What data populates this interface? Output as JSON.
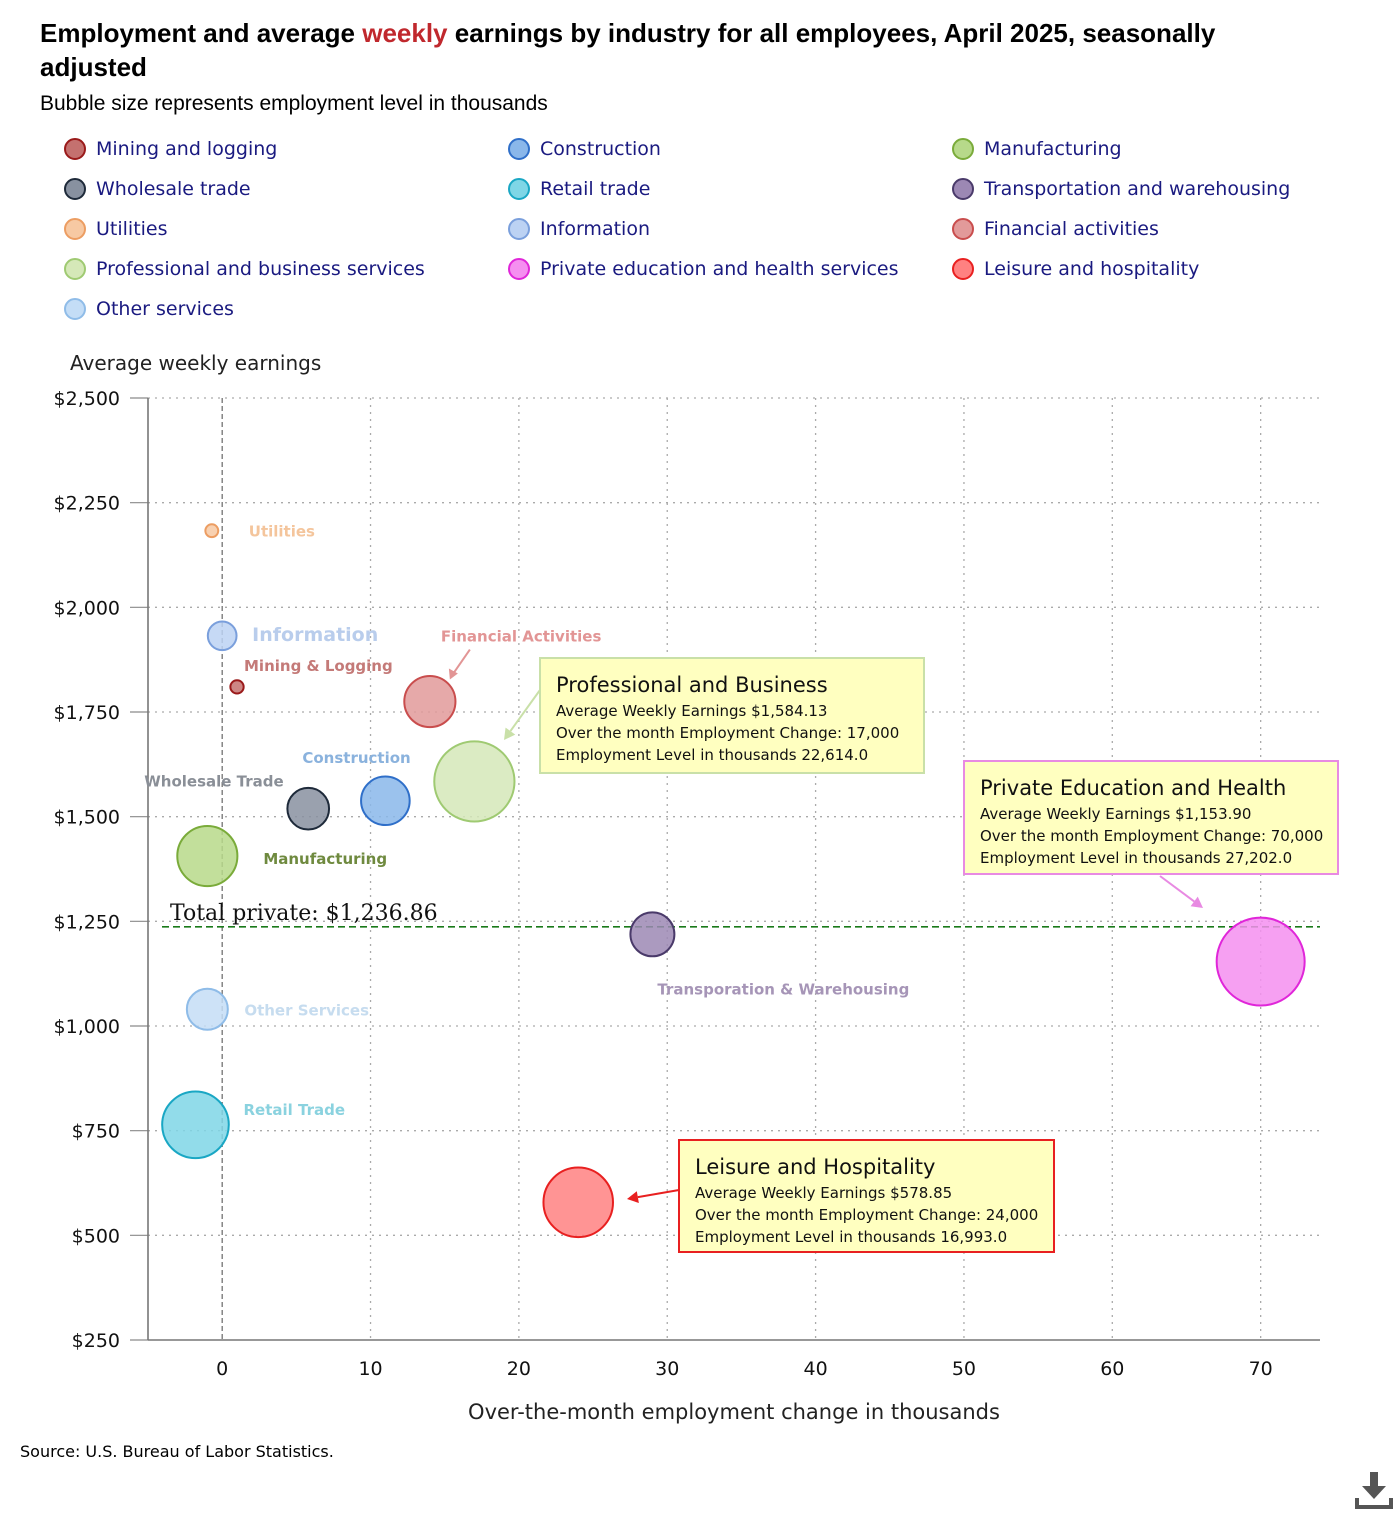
{
  "title": {
    "before": "Employment and average ",
    "highlight": "weekly",
    "after": " earnings by industry for all employees, April 2025, seasonally adjusted",
    "highlight_color": "#c0282d"
  },
  "subtitle": "Bubble size represents employment level in thousands",
  "legend": [
    {
      "label": "Mining and logging",
      "color": "#c4716f",
      "stroke": "#9a1a1a"
    },
    {
      "label": "Construction",
      "color": "#8ab7ea",
      "stroke": "#2f6fc9"
    },
    {
      "label": "Manufacturing",
      "color": "#b7d98a",
      "stroke": "#7aab3a"
    },
    {
      "label": "Wholesale trade",
      "color": "#8891a0",
      "stroke": "#1e2a3a"
    },
    {
      "label": "Retail trade",
      "color": "#7fd6e6",
      "stroke": "#1aa7c4"
    },
    {
      "label": "Transportation and warehousing",
      "color": "#9c88b4",
      "stroke": "#4a3a6a"
    },
    {
      "label": "Utilities",
      "color": "#f7c9a3",
      "stroke": "#ec9d62"
    },
    {
      "label": "Information",
      "color": "#bcd2f3",
      "stroke": "#7a9fdc"
    },
    {
      "label": "Financial activities",
      "color": "#e29a9a",
      "stroke": "#c94d4d"
    },
    {
      "label": "Professional and business services",
      "color": "#d5e8b8",
      "stroke": "#9fca72"
    },
    {
      "label": "Private education and health services",
      "color": "#f58ff0",
      "stroke": "#e026d9"
    },
    {
      "label": "Leisure and hospitality",
      "color": "#ff8181",
      "stroke": "#e82020"
    },
    {
      "label": "Other services",
      "color": "#c4ddf6",
      "stroke": "#8fbce8"
    }
  ],
  "chart_data": {
    "type": "scatter",
    "subtype": "bubble",
    "ylabel": "Average weekly earnings",
    "xlabel": "Over-the-month employment change in thousands",
    "xlim": [
      -5,
      74
    ],
    "ylim": [
      250,
      2500
    ],
    "xticks": [
      0,
      10,
      20,
      30,
      40,
      50,
      60,
      70
    ],
    "xtick_labels": [
      "0",
      "10",
      "20",
      "30",
      "40",
      "50",
      "60",
      "70"
    ],
    "yticks": [
      250,
      500,
      750,
      1000,
      1250,
      1500,
      1750,
      2000,
      2250,
      2500
    ],
    "ytick_labels": [
      "$250",
      "$500",
      "$750",
      "$1,000",
      "$1,250",
      "$1,500",
      "$1,750",
      "$2,000",
      "$2,250",
      "$2,500"
    ],
    "grid": "dotted",
    "reference_line": {
      "y": 1236.86,
      "label": "Total private: $1,236.86",
      "color": "#1a7a1a"
    },
    "series": [
      {
        "name": "Mining and logging",
        "label": "Mining & Logging",
        "x": 1,
        "y": 1810,
        "size": 620,
        "color": "#c4716f",
        "stroke": "#9a1a1a",
        "label_color": "#c47a78"
      },
      {
        "name": "Construction",
        "label": "Construction",
        "x": 11,
        "y": 1538,
        "size": 8300,
        "color": "#8ab7ea",
        "stroke": "#2f6fc9",
        "label_color": "#8ab2dd"
      },
      {
        "name": "Manufacturing",
        "label": "Manufacturing",
        "x": -1,
        "y": 1406,
        "size": 12700,
        "color": "#b7d98a",
        "stroke": "#7aab3a",
        "label_color": "#6f8a3f"
      },
      {
        "name": "Wholesale trade",
        "label": "Wholesale Trade",
        "x": 5.8,
        "y": 1519,
        "size": 6100,
        "color": "#8891a0",
        "stroke": "#1e2a3a",
        "label_color": "#8a8f97"
      },
      {
        "name": "Retail trade",
        "label": "Retail Trade",
        "x": -1.8,
        "y": 764,
        "size": 15600,
        "color": "#7fd6e6",
        "stroke": "#1aa7c4",
        "label_color": "#8ad2df"
      },
      {
        "name": "Transportation and warehousing",
        "label": "Transporation & Warehousing",
        "x": 29,
        "y": 1219,
        "size": 6800,
        "color": "#9c88b4",
        "stroke": "#4a3a6a",
        "label_color": "#a695b7"
      },
      {
        "name": "Utilities",
        "label": "Utilities",
        "x": -0.7,
        "y": 2183,
        "size": 580,
        "color": "#f7c9a3",
        "stroke": "#ec9d62",
        "label_color": "#f4c59c"
      },
      {
        "name": "Information",
        "label": "Information",
        "x": 0,
        "y": 1932,
        "size": 2900,
        "color": "#bcd2f3",
        "stroke": "#7a9fdc",
        "label_color": "#b9cdec"
      },
      {
        "name": "Financial activities",
        "label": "Financial Activities",
        "x": 14,
        "y": 1775,
        "size": 9200,
        "color": "#e29a9a",
        "stroke": "#c94d4d",
        "label_color": "#e29595"
      },
      {
        "name": "Professional and business services",
        "label": "Professional and Business",
        "x": 17,
        "y": 1584.13,
        "size": 22614,
        "color": "#d5e8b8",
        "stroke": "#9fca72",
        "label_color": "#9fca72"
      },
      {
        "name": "Private education and health services",
        "label": "Private Education and Health",
        "x": 70,
        "y": 1153.9,
        "size": 27202,
        "color": "#f58ff0",
        "stroke": "#e026d9",
        "label_color": "#e026d9"
      },
      {
        "name": "Leisure and hospitality",
        "label": "Leisure and Hospitality",
        "x": 24,
        "y": 578.85,
        "size": 16993,
        "color": "#ff8181",
        "stroke": "#e82020",
        "label_color": "#e82020"
      },
      {
        "name": "Other services",
        "label": "Other Services",
        "x": -1,
        "y": 1040,
        "size": 5900,
        "color": "#c4ddf6",
        "stroke": "#8fbce8",
        "label_color": "#c6dcef"
      }
    ],
    "callouts": [
      {
        "series": "Professional and business services",
        "title": "Professional and Business",
        "lines": [
          "Average Weekly Earnings $1,584.13",
          "Over the month Employment Change:  17,000",
          "Employment Level in thousands 22,614.0"
        ],
        "border": "#c9e0a8",
        "bg": "#ffffc0"
      },
      {
        "series": "Private education and health services",
        "title": "Private Education and Health",
        "lines": [
          "Average Weekly Earnings $1,153.90",
          "Over the month Employment Change:  70,000",
          "Employment Level in thousands 27,202.0"
        ],
        "border": "#e88ae2",
        "bg": "#ffffc0"
      },
      {
        "series": "Leisure and hospitality",
        "title": "Leisure and Hospitality",
        "lines": [
          "Average Weekly Earnings $578.85",
          "Over the month Employment Change:  24,000",
          "Employment Level in thousands 16,993.0"
        ],
        "border": "#e82020",
        "bg": "#ffffc0"
      }
    ]
  },
  "source": "Source: U.S. Bureau of Labor Statistics.",
  "download_icon": "download-icon"
}
